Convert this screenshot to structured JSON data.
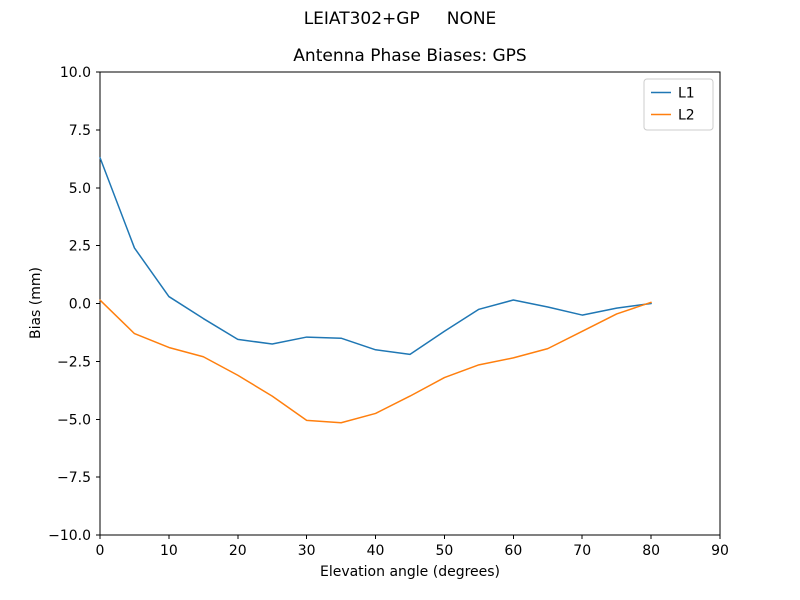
{
  "chart_data": {
    "type": "line",
    "suptitle": "LEIAT302+GP     NONE",
    "title": "Antenna Phase Biases: GPS",
    "xlabel": "Elevation angle (degrees)",
    "ylabel": "Bias (mm)",
    "xlim": [
      0,
      90
    ],
    "ylim": [
      -10,
      10
    ],
    "grid": false,
    "xticks": [
      0,
      10,
      20,
      30,
      40,
      50,
      60,
      70,
      80,
      90
    ],
    "xticklabels": [
      "0",
      "10",
      "20",
      "30",
      "40",
      "50",
      "60",
      "70",
      "80",
      "90"
    ],
    "yticks": [
      -10,
      -7.5,
      -5,
      -2.5,
      0,
      2.5,
      5,
      7.5,
      10
    ],
    "yticklabels": [
      "−10.0",
      "−7.5",
      "−5.0",
      "−2.5",
      "0.0",
      "2.5",
      "5.0",
      "7.5",
      "10.0"
    ],
    "x": [
      0,
      5,
      10,
      15,
      20,
      25,
      30,
      35,
      40,
      45,
      50,
      55,
      60,
      65,
      70,
      75,
      80
    ],
    "series": [
      {
        "name": "L1",
        "color": "#1f77b4",
        "values": [
          6.3,
          2.4,
          0.3,
          -0.65,
          -1.55,
          -1.75,
          -1.45,
          -1.5,
          -2.0,
          -2.2,
          -1.2,
          -0.25,
          0.15,
          -0.15,
          -0.5,
          -0.2,
          0.0
        ]
      },
      {
        "name": "L2",
        "color": "#ff7f0e",
        "values": [
          0.15,
          -1.3,
          -1.9,
          -2.3,
          -3.1,
          -4.0,
          -5.05,
          -5.15,
          -4.75,
          -4.0,
          -3.2,
          -2.65,
          -2.35,
          -1.95,
          -1.2,
          -0.45,
          0.05
        ]
      }
    ],
    "legend": {
      "position": "upper right",
      "entries": [
        "L1",
        "L2"
      ]
    }
  },
  "colors": {
    "background": "#ffffff",
    "axis": "#000000",
    "text": "#000000",
    "legend_border": "#cccccc",
    "l1": "#1f77b4",
    "l2": "#ff7f0e"
  }
}
